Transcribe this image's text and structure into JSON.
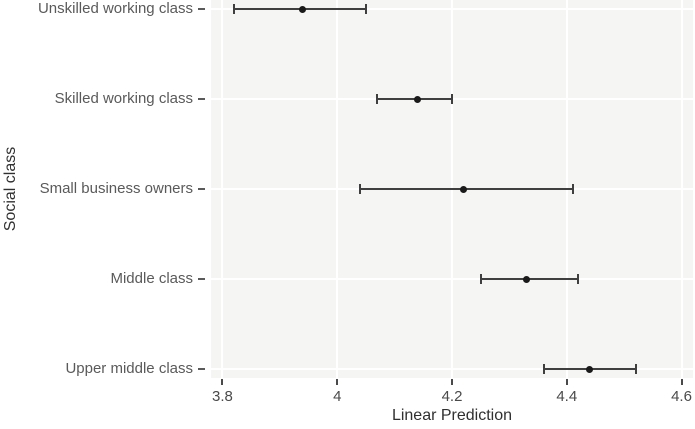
{
  "figure": {
    "background_color": "#ffffff",
    "panel_background_color": "#f5f5f4",
    "gridline_color": "#ffffff",
    "point_color": "#1a1a1a",
    "errorbar_color": "#3f3f3f",
    "category_label_color": "#5a5a5a",
    "tick_label_color": "#4a4a4a",
    "axis_title_color": "#303030"
  },
  "chart_data": {
    "type": "scatter",
    "subtype": "dot_plot_with_error_bars",
    "orientation": "horizontal",
    "title": "",
    "xlabel": "Linear Prediction",
    "ylabel": "Social class",
    "categories": [
      "Unskilled working class",
      "Skilled working class",
      "Small business owners",
      "Middle class",
      "Upper middle class"
    ],
    "points": [
      {
        "category": "Unskilled working class",
        "value": 3.94,
        "ci_low": 3.82,
        "ci_high": 4.05
      },
      {
        "category": "Skilled working class",
        "value": 4.14,
        "ci_low": 4.07,
        "ci_high": 4.2
      },
      {
        "category": "Small business owners",
        "value": 4.22,
        "ci_low": 4.04,
        "ci_high": 4.41
      },
      {
        "category": "Middle class",
        "value": 4.33,
        "ci_low": 4.25,
        "ci_high": 4.42
      },
      {
        "category": "Upper middle class",
        "value": 4.44,
        "ci_low": 4.36,
        "ci_high": 4.52
      }
    ],
    "x_ticks": [
      3.8,
      4.0,
      4.2,
      4.4,
      4.6
    ],
    "x_tick_labels": [
      "3.8",
      "4",
      "4.2",
      "4.4",
      "4.6"
    ],
    "xlim": [
      3.78,
      4.62
    ],
    "grid": true,
    "legend_position": "none"
  }
}
